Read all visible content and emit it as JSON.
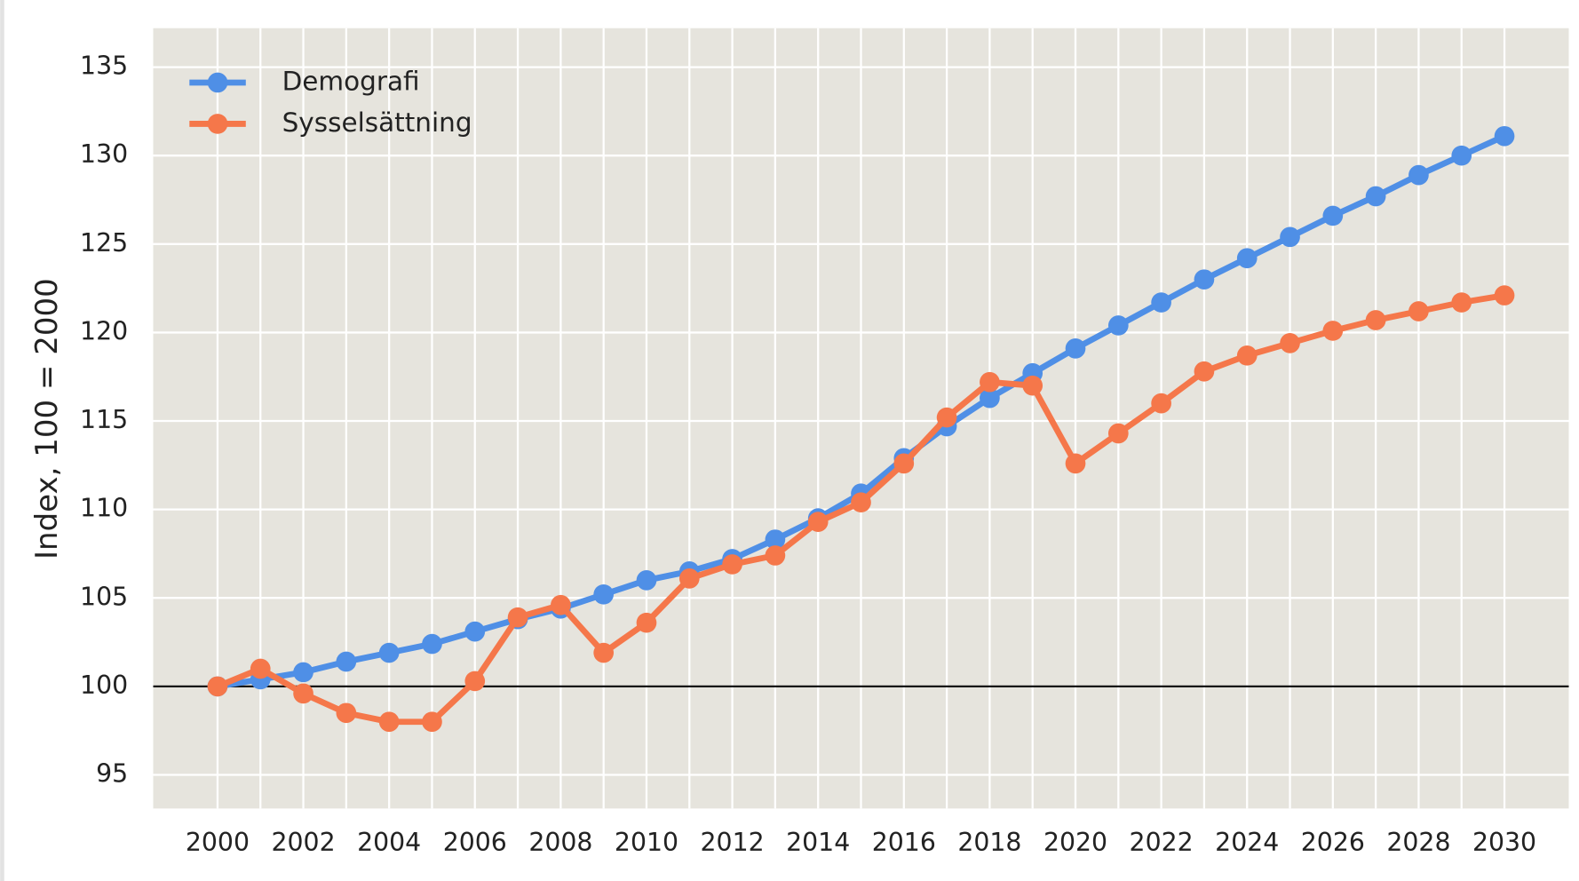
{
  "chart_data": {
    "type": "line",
    "ylabel": "Index, 100 = 2000",
    "x": [
      2000,
      2001,
      2002,
      2003,
      2004,
      2005,
      2006,
      2007,
      2008,
      2009,
      2010,
      2011,
      2012,
      2013,
      2014,
      2015,
      2016,
      2017,
      2018,
      2019,
      2020,
      2021,
      2022,
      2023,
      2024,
      2025,
      2026,
      2027,
      2028,
      2029,
      2030
    ],
    "series": [
      {
        "name": "Demografi",
        "color": "#4f8fe6",
        "values": [
          100,
          100.4,
          100.8,
          101.4,
          101.9,
          102.4,
          103.1,
          103.8,
          104.4,
          105.2,
          106.0,
          106.5,
          107.2,
          108.3,
          109.5,
          110.9,
          112.9,
          114.7,
          116.3,
          117.7,
          119.1,
          120.4,
          121.7,
          123.0,
          124.2,
          125.4,
          126.6,
          127.7,
          128.9,
          130.0,
          131.1
        ]
      },
      {
        "name": "Sysselsättning",
        "color": "#f5774a",
        "values": [
          100,
          101.0,
          99.6,
          98.5,
          98.0,
          98.0,
          100.3,
          103.9,
          104.6,
          101.9,
          103.6,
          106.1,
          106.9,
          107.4,
          109.3,
          110.4,
          112.6,
          115.2,
          117.2,
          117.0,
          112.6,
          114.3,
          116.0,
          117.8,
          118.7,
          119.4,
          120.1,
          120.7,
          121.2,
          121.7,
          122.1
        ]
      }
    ],
    "xlim": [
      1998.5,
      2031.5
    ],
    "xticks": [
      2000,
      2002,
      2004,
      2006,
      2008,
      2010,
      2012,
      2014,
      2016,
      2018,
      2020,
      2022,
      2024,
      2026,
      2028,
      2030
    ],
    "ylim": [
      93.1,
      137.2
    ],
    "yticks": [
      95,
      100,
      105,
      110,
      115,
      120,
      125,
      130,
      135
    ],
    "reference_line": 100,
    "grid": true,
    "legend": "upper left"
  }
}
